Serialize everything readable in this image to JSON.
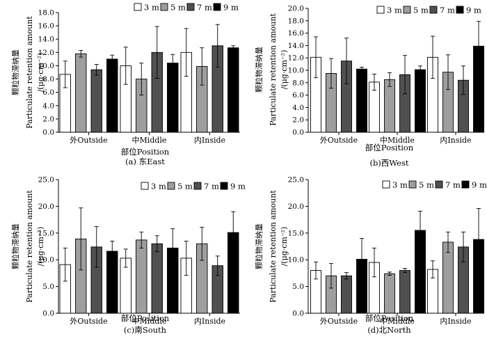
{
  "figure": {
    "ylabel_cn": "颗粒物滞纳量",
    "ylabel_en": "Particulate retention amount",
    "ylabel_unit": "/(μg·cm⁻²)",
    "legend": [
      "3 m",
      "5 m",
      "7 m",
      "9 m"
    ],
    "colors": {
      "s3": "#ffffff",
      "s5": "#9e9e9e",
      "s7": "#505050",
      "s9": "#000000",
      "axis": "#000000"
    }
  },
  "chart_data": [
    {
      "type": "bar",
      "panel": "a",
      "caption": "(a) 东East",
      "xlabel": "部位Position",
      "categories": [
        "外Outside",
        "中Middle",
        "内Inside"
      ],
      "ylim": [
        0,
        18
      ],
      "yticks": [
        "0.0",
        "2.0",
        "4.0",
        "6.0",
        "8.0",
        "10.0",
        "12.0",
        "14.0",
        "16.0",
        "18.0"
      ],
      "legend_position": "top-right",
      "series": [
        {
          "name": "3 m",
          "values": [
            8.7,
            10.0,
            12.0
          ],
          "errors": [
            2.0,
            2.8,
            3.6
          ]
        },
        {
          "name": "5 m",
          "values": [
            11.8,
            8.0,
            9.9
          ],
          "errors": [
            0.5,
            2.4,
            2.8
          ]
        },
        {
          "name": "7 m",
          "values": [
            9.4,
            12.0,
            13.0
          ],
          "errors": [
            0.8,
            3.9,
            3.2
          ]
        },
        {
          "name": "9 m",
          "values": [
            11.0,
            10.4,
            12.7
          ],
          "errors": [
            0.6,
            1.3,
            0.3
          ]
        }
      ]
    },
    {
      "type": "bar",
      "panel": "b",
      "caption": "(b)西West",
      "xlabel": "部位Position",
      "categories": [
        "外Outside",
        "中Middle",
        "内Inside"
      ],
      "ylim": [
        0,
        20
      ],
      "yticks": [
        "0.0",
        "2.0",
        "4.0",
        "6.0",
        "8.0",
        "10.0",
        "12.0",
        "14.0",
        "16.0",
        "18.0",
        "20.0"
      ],
      "legend_position": "top-right",
      "series": [
        {
          "name": "3 m",
          "values": [
            12.1,
            8.1,
            12.1
          ],
          "errors": [
            3.3,
            1.3,
            3.4
          ]
        },
        {
          "name": "5 m",
          "values": [
            9.5,
            8.5,
            9.7
          ],
          "errors": [
            2.4,
            1.1,
            2.8
          ]
        },
        {
          "name": "7 m",
          "values": [
            11.5,
            9.3,
            8.4
          ],
          "errors": [
            3.7,
            3.1,
            2.3
          ]
        },
        {
          "name": "9 m",
          "values": [
            10.2,
            10.1,
            13.9
          ],
          "errors": [
            0.3,
            0.6,
            4.0
          ]
        }
      ]
    },
    {
      "type": "bar",
      "panel": "c",
      "caption": "(c)南South",
      "xlabel": "部位Position",
      "categories": [
        "外Outside",
        "中Middle",
        "内Inside"
      ],
      "ylim": [
        0,
        25
      ],
      "yticks": [
        "0.0",
        "5.0",
        "10.0",
        "15.0",
        "20.0",
        "25.0"
      ],
      "legend_position": "top-right",
      "series": [
        {
          "name": "3 m",
          "values": [
            9.1,
            10.3,
            10.3
          ],
          "errors": [
            3.1,
            1.7,
            3.2
          ]
        },
        {
          "name": "5 m",
          "values": [
            13.9,
            13.7,
            13.0
          ],
          "errors": [
            5.8,
            1.5,
            3.1
          ]
        },
        {
          "name": "7 m",
          "values": [
            12.4,
            13.0,
            8.9
          ],
          "errors": [
            3.8,
            1.5,
            1.8
          ]
        },
        {
          "name": "9 m",
          "values": [
            11.6,
            12.2,
            15.1
          ],
          "errors": [
            1.9,
            3.6,
            3.9
          ]
        }
      ]
    },
    {
      "type": "bar",
      "panel": "d",
      "caption": "(d)北North",
      "xlabel": "部位Position",
      "categories": [
        "外Outside",
        "中Middle",
        "内Inside"
      ],
      "ylim": [
        0,
        25
      ],
      "yticks": [
        "0.0",
        "5.0",
        "10.0",
        "15.0",
        "20.0",
        "25.0"
      ],
      "legend_position": "top-right",
      "series": [
        {
          "name": "3 m",
          "values": [
            8.0,
            9.5,
            8.2
          ],
          "errors": [
            1.6,
            2.7,
            1.6
          ]
        },
        {
          "name": "5 m",
          "values": [
            7.0,
            7.4,
            13.3
          ],
          "errors": [
            2.3,
            0.3,
            1.9
          ]
        },
        {
          "name": "7 m",
          "values": [
            7.0,
            8.0,
            12.4
          ],
          "errors": [
            0.6,
            0.4,
            2.8
          ]
        },
        {
          "name": "9 m",
          "values": [
            10.1,
            15.5,
            13.8
          ],
          "errors": [
            3.9,
            3.6,
            5.8
          ]
        }
      ]
    }
  ]
}
